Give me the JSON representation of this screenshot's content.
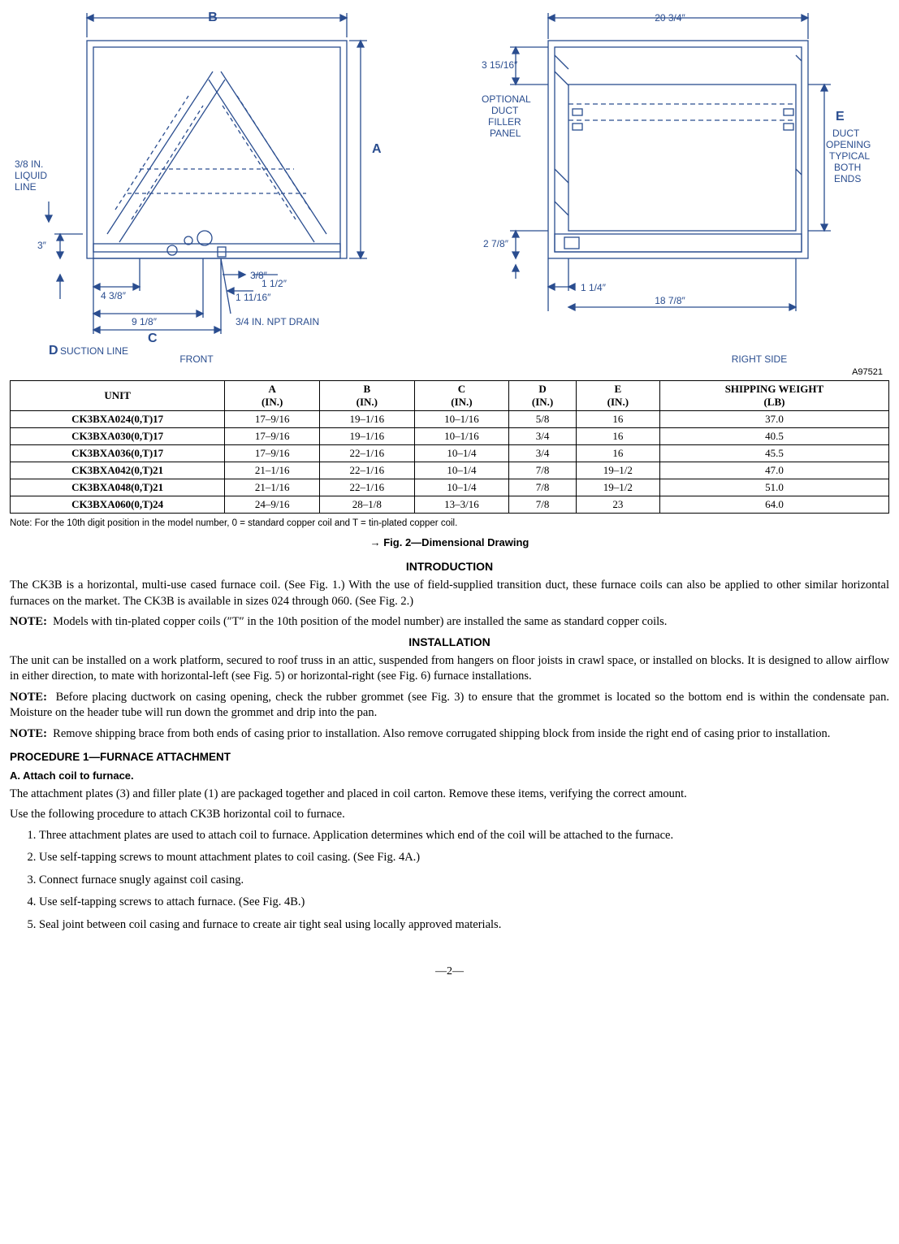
{
  "figure_ref": "A97521",
  "diagram": {
    "colors": {
      "line": "#2a4d8f",
      "bg": "#ffffff"
    },
    "front": {
      "label": "FRONT",
      "B": "B",
      "A": "A",
      "C": "C",
      "D_label": "D",
      "suction_line": "SUCTION LINE",
      "liquid_line_top": "3/8 IN.",
      "liquid_line_mid": "LIQUID",
      "liquid_line_bot": "LINE",
      "dim_3": "3″",
      "dim_4_3_8": "4 3/8″",
      "dim_9_1_8": "9 1/8″",
      "dim_3_8": "3/8″",
      "dim_1_1_2": "1 1/2″",
      "dim_1_11_16": "1 11/16″",
      "drain": "3/4 IN. NPT DRAIN"
    },
    "right": {
      "label": "RIGHT SIDE",
      "top_dim": "20 3/4″",
      "dim_3_15_16": "3 15/16″",
      "optional1": "OPTIONAL",
      "optional2": "DUCT",
      "optional3": "FILLER",
      "optional4": "PANEL",
      "E": "E",
      "duct1": "DUCT",
      "duct2": "OPENING",
      "duct3": "TYPICAL",
      "duct4": "BOTH",
      "duct5": "ENDS",
      "dim_2_7_8": "2 7/8″",
      "dim_1_1_4": "1 1/4″",
      "dim_18_7_8": "18 7/8″"
    }
  },
  "table": {
    "headers": [
      "UNIT",
      "A\n(IN.)",
      "B\n(IN.)",
      "C\n(IN.)",
      "D\n(IN.)",
      "E\n(IN.)",
      "SHIPPING WEIGHT\n(LB)"
    ],
    "rows": [
      [
        "CK3BXA024(0,T)17",
        "17–9/16",
        "19–1/16",
        "10–1/16",
        "5/8",
        "16",
        "37.0"
      ],
      [
        "CK3BXA030(0,T)17",
        "17–9/16",
        "19–1/16",
        "10–1/16",
        "3/4",
        "16",
        "40.5"
      ],
      [
        "CK3BXA036(0,T)17",
        "17–9/16",
        "22–1/16",
        "10–1/4",
        "3/4",
        "16",
        "45.5"
      ],
      [
        "CK3BXA042(0,T)21",
        "21–1/16",
        "22–1/16",
        "10–1/4",
        "7/8",
        "19–1/2",
        "47.0"
      ],
      [
        "CK3BXA048(0,T)21",
        "21–1/16",
        "22–1/16",
        "10–1/4",
        "7/8",
        "19–1/2",
        "51.0"
      ],
      [
        "CK3BXA060(0,T)24",
        "24–9/16",
        "28–1/8",
        "13–3/16",
        "7/8",
        "23",
        "64.0"
      ]
    ],
    "note": "Note: For the 10th digit position in the model number, 0 = standard copper coil and T = tin-plated copper coil."
  },
  "fig_caption": "→  Fig. 2—Dimensional Drawing",
  "sections": {
    "intro_title": "INTRODUCTION",
    "intro_p1": "The CK3B is a horizontal, multi-use cased furnace coil. (See Fig. 1.) With the use of field-supplied transition duct, these furnace coils can also be applied to other similar horizontal furnaces on the market. The CK3B is available in sizes 024 through 060. (See Fig. 2.)",
    "intro_note": "Models with tin-plated copper coils (″T″ in the 10th position of the model number) are installed the same as standard copper coils.",
    "install_title": "INSTALLATION",
    "install_p1": "The unit can be installed on a work platform, secured to roof truss in an attic, suspended from hangers on floor joists in crawl space, or installed on blocks. It is designed to allow airflow in either direction, to mate with horizontal-left (see Fig. 5) or horizontal-right (see Fig. 6) furnace installations.",
    "install_note1": "Before placing ductwork on casing opening, check the rubber grommet (see Fig. 3) to ensure that the grommet is located so the bottom end is within the condensate pan. Moisture on the header tube will run down the grommet and drip into the pan.",
    "install_note2": "Remove shipping brace from both ends of casing prior to installation. Also remove corrugated shipping block from inside the right end of casing prior to installation.",
    "proc1_title": "PROCEDURE   1—FURNACE ATTACHMENT",
    "proc1_sub": "A.   Attach coil to furnace.",
    "proc1_p1": "The attachment plates (3) and filler plate (1) are packaged together and placed in coil carton. Remove these items, verifying the correct amount.",
    "proc1_p2": "Use the following procedure to attach CK3B horizontal coil to furnace.",
    "steps": [
      "Three attachment plates are used to attach coil to furnace. Application determines which end of the coil will be attached to the furnace.",
      "Use self-tapping screws to mount attachment plates to coil casing. (See Fig. 4A.)",
      "Connect furnace snugly against coil casing.",
      "Use self-tapping screws to attach furnace. (See Fig. 4B.)",
      "Seal joint between coil casing and furnace to create air tight seal using locally approved materials."
    ]
  },
  "note_label": "NOTE:",
  "page_num": "—2—"
}
